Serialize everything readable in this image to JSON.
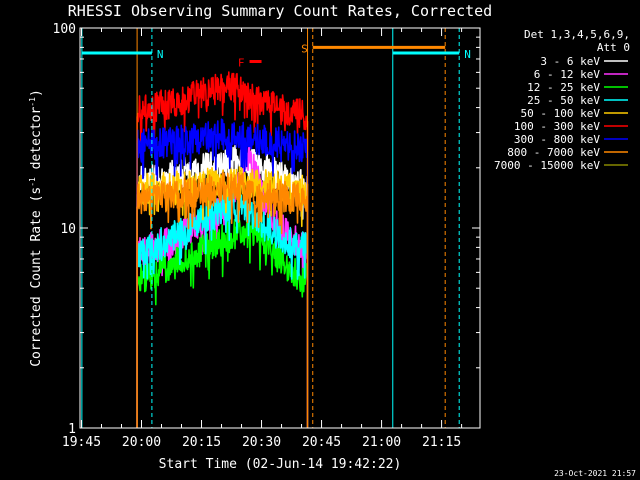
{
  "chart_data": {
    "type": "line",
    "title": "RHESSI Observing Summary Count Rates, Corrected",
    "xlabel": "Start Time (02-Jun-14 19:42:22)",
    "ylabel_parts": [
      "Corrected Count Rate (s",
      "-1",
      " detector",
      "-1",
      ")"
    ],
    "yscale": "log",
    "ylim": [
      1,
      100
    ],
    "xlim_minutes": [
      -0.37,
      99.6
    ],
    "y_ticks": [
      "1",
      "10",
      "100"
    ],
    "x_ticks": [
      "19:45",
      "20:00",
      "20:15",
      "20:30",
      "20:45",
      "21:00",
      "21:15"
    ],
    "legend_header": [
      "Det 1,3,4,5,6,9,",
      "Att 0"
    ],
    "series": [
      {
        "name": "3 - 6 keV",
        "color": "#ffffff",
        "x": [
          13.9,
          16,
          20,
          24,
          28,
          31,
          34,
          37,
          39,
          42,
          45,
          48,
          51,
          56.5
        ],
        "values": [
          17,
          17.2,
          17.8,
          18.5,
          19.2,
          20,
          20.8,
          21.5,
          21.6,
          21,
          20,
          19,
          17.5,
          16.5
        ]
      },
      {
        "name": "6 - 12 keV",
        "color": "#ff33ff",
        "x": [
          13.9,
          18,
          22,
          26,
          30,
          33,
          36,
          38,
          40,
          42,
          44,
          46,
          48,
          50,
          52,
          54,
          56.5
        ],
        "values": [
          7.5,
          8,
          8.5,
          9.5,
          10.5,
          11.5,
          12.5,
          14,
          17,
          23,
          18,
          13,
          11,
          10,
          9,
          8.5,
          8
        ]
      },
      {
        "name": "12 - 25 keV",
        "color": "#00ff00",
        "x": [
          13.9,
          18,
          22,
          26,
          30,
          34,
          38,
          40,
          42,
          44,
          46,
          48,
          50,
          52,
          54,
          56.5
        ],
        "values": [
          5.5,
          6,
          6.5,
          7,
          7.7,
          8.5,
          9.2,
          9.5,
          9.6,
          9.3,
          8.5,
          7.5,
          6.8,
          6.2,
          5.8,
          5.5
        ]
      },
      {
        "name": "25 - 50 keV",
        "color": "#00ffff",
        "x": [
          13.9,
          18,
          22,
          26,
          30,
          34,
          37,
          40,
          43,
          46,
          49,
          52,
          56.5
        ],
        "values": [
          7.5,
          8,
          8.8,
          9.8,
          11,
          12.2,
          13,
          12.8,
          11.5,
          10.2,
          9.2,
          8.5,
          8
        ]
      },
      {
        "name": "50 - 100 keV",
        "color": "#ffcc00",
        "x": [
          13.9,
          20,
          26,
          32,
          38,
          44,
          50,
          56.5
        ],
        "values": [
          15.5,
          16,
          16.5,
          17,
          17,
          16.5,
          16,
          15.5
        ]
      },
      {
        "name": "100 - 300 keV",
        "color": "#ff0000",
        "x": [
          13.9,
          18,
          22,
          26,
          30,
          34,
          37,
          40,
          43,
          46,
          50,
          53,
          56.5
        ],
        "values": [
          38,
          40,
          42,
          44,
          47,
          50,
          51,
          49,
          45,
          42,
          40,
          38,
          37
        ]
      },
      {
        "name": "300 - 800 keV",
        "color": "#0000ff",
        "x": [
          13.9,
          20,
          26,
          32,
          36,
          40,
          44,
          48,
          52,
          56.5
        ],
        "values": [
          26,
          26.5,
          27.5,
          28.5,
          29.5,
          29,
          28,
          27,
          26,
          25.5
        ]
      },
      {
        "name": "800 - 7000 keV",
        "color": "#ff8800",
        "x": [
          13.9,
          20,
          26,
          32,
          36,
          40,
          44,
          48,
          52,
          56.5
        ],
        "values": [
          14,
          14.3,
          14.8,
          15.5,
          16,
          15.8,
          15,
          14.5,
          14.2,
          14
        ]
      },
      {
        "name": "7000 - 15000 keV",
        "color": "#888800",
        "x": [],
        "values": []
      }
    ],
    "verticals": [
      {
        "x": 0.1,
        "color": "#00ffff",
        "style": "solid"
      },
      {
        "x": 17.6,
        "color": "#00ffff",
        "style": "dashed"
      },
      {
        "x": 13.9,
        "color": "#ff8800",
        "style": "solid"
      },
      {
        "x": 56.5,
        "color": "#ff8800",
        "style": "solid"
      },
      {
        "x": 57.8,
        "color": "#ff8800",
        "style": "dashed"
      },
      {
        "x": 77.8,
        "color": "#00ffff",
        "style": "solid"
      },
      {
        "x": 90.9,
        "color": "#ff8800",
        "style": "dashed"
      },
      {
        "x": 94.4,
        "color": "#00ffff",
        "style": "dashed"
      }
    ],
    "bars": [
      {
        "label": "N",
        "color": "#00ffff",
        "x0": 0.1,
        "x1": 17.6,
        "y": 75
      },
      {
        "label": "N",
        "color": "#00ffff",
        "x0": 77.8,
        "x1": 94.4,
        "y": 75
      },
      {
        "label": "S",
        "color": "#ff8800",
        "x0": 57.8,
        "x1": 90.9,
        "y": 80
      },
      {
        "label": "F",
        "color": "#ff0000",
        "x0": 42,
        "x1": 45,
        "y": 68
      }
    ],
    "timestamp": "23-Oct-2021 21:57"
  }
}
